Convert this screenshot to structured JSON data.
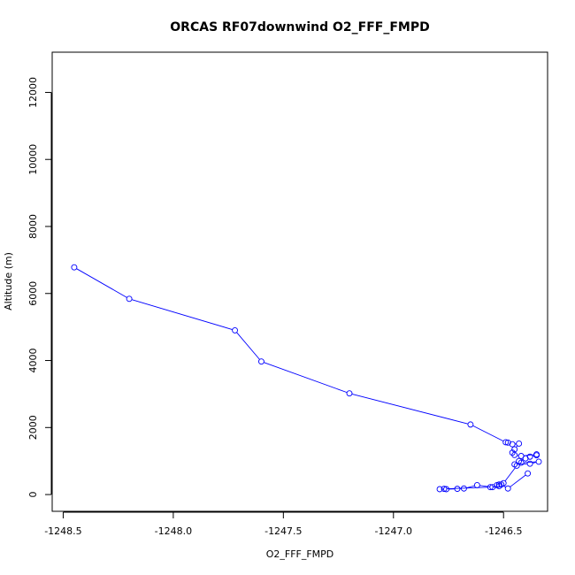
{
  "chart_data": {
    "type": "line",
    "title": "ORCAS RF07downwind O2_FFF_FMPD",
    "xlabel": "O2_FFF_FMPD",
    "ylabel": "Altitude (m)",
    "xlim": [
      -1248.55,
      -1246.3
    ],
    "ylim": [
      -500,
      13200
    ],
    "xticks": [
      -1248.5,
      -1248.0,
      -1247.5,
      -1247.0,
      -1246.5
    ],
    "xtick_labels": [
      "-1248.5",
      "-1248.0",
      "-1247.5",
      "-1247.0",
      "-1246.5"
    ],
    "yticks": [
      0,
      2000,
      4000,
      6000,
      8000,
      10000,
      12000
    ],
    "ytick_labels": [
      "0",
      "2000",
      "4000",
      "6000",
      "8000",
      "10000",
      "12000"
    ],
    "grid": false,
    "legend": "none",
    "series": [
      {
        "name": "O2_FFF_FMPD",
        "color": "#0000ff",
        "marker": "open-circle",
        "x": [
          -1248.45,
          -1248.2,
          -1247.72,
          -1247.6,
          -1247.2,
          -1246.65,
          -1246.49,
          -1246.48,
          -1246.46,
          -1246.43,
          -1246.45,
          -1246.46,
          -1246.45,
          -1246.42,
          -1246.35,
          -1246.35,
          -1246.38,
          -1246.4,
          -1246.43,
          -1246.42,
          -1246.34,
          -1246.38,
          -1246.45,
          -1246.44,
          -1246.5,
          -1246.52,
          -1246.53,
          -1246.55,
          -1246.62,
          -1246.68,
          -1246.71,
          -1246.76,
          -1246.79,
          -1246.77,
          -1246.56,
          -1246.52,
          -1246.51,
          -1246.48,
          -1246.39
        ],
        "y": [
          6780,
          5840,
          4900,
          3970,
          3020,
          2090,
          1560,
          1550,
          1500,
          1520,
          1350,
          1250,
          1180,
          1150,
          1200,
          1170,
          1130,
          1080,
          1000,
          950,
          980,
          920,
          900,
          860,
          340,
          300,
          280,
          220,
          280,
          180,
          170,
          160,
          160,
          170,
          220,
          250,
          300,
          180,
          630
        ]
      }
    ]
  }
}
